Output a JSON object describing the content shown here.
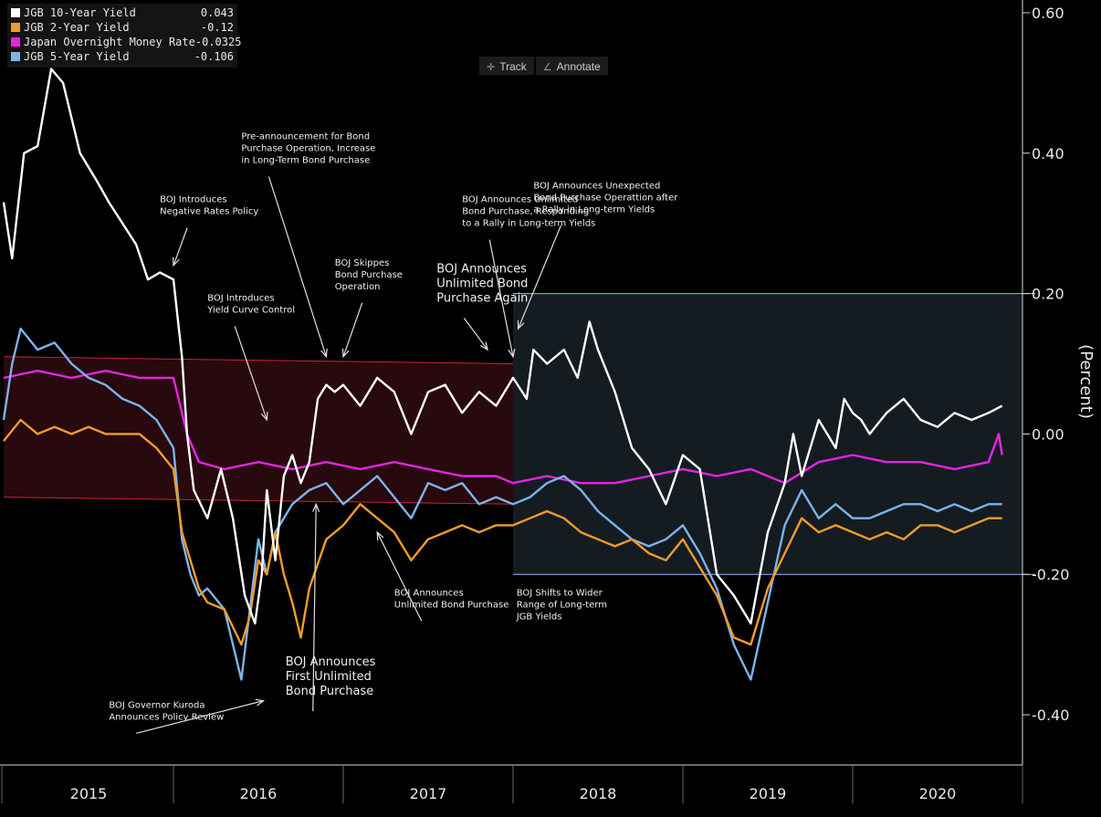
{
  "legend": [
    {
      "name": "JGB 10-Year Yield",
      "value": "0.043",
      "color": "#ffffff"
    },
    {
      "name": "JGB 2-Year Yield",
      "value": "-0.12",
      "color": "#f39c2a"
    },
    {
      "name": "Japan Overnight Money Rate",
      "value": "-0.0325",
      "color": "#e624e6"
    },
    {
      "name": "JGB 5-Year Yield",
      "value": "-0.106",
      "color": "#7db4ec"
    }
  ],
  "toolbar": {
    "track_label": "Track",
    "annotate_label": "Annotate",
    "track_icon": "crosshair-icon",
    "annotate_icon": "pencil-icon"
  },
  "chart_data": {
    "type": "line",
    "title": "",
    "xlabel": "",
    "ylabel": "(Percent)",
    "xlim": [
      2015.0,
      2021.0
    ],
    "ylim": [
      -0.47,
      0.62
    ],
    "y_ticks": [
      0.6,
      0.4,
      0.2,
      0.0,
      -0.2,
      -0.4
    ],
    "y_tick_labels": [
      "0.60",
      "0.40",
      "0.20",
      "0.00",
      "-0.20",
      "-0.40"
    ],
    "year_labels": [
      "2015",
      "2016",
      "2017",
      "2018",
      "2019",
      "2020"
    ],
    "axis_position": "right",
    "grid": false,
    "series": [
      {
        "name": "JGB 10-Year Yield",
        "color": "#ffffff",
        "x": [
          2015.0,
          2015.05,
          2015.12,
          2015.2,
          2015.28,
          2015.35,
          2015.45,
          2015.55,
          2015.62,
          2015.7,
          2015.78,
          2015.85,
          2015.92,
          2016.0,
          2016.05,
          2016.08,
          2016.12,
          2016.2,
          2016.28,
          2016.35,
          2016.42,
          2016.48,
          2016.52,
          2016.55,
          2016.6,
          2016.65,
          2016.7,
          2016.75,
          2016.8,
          2016.85,
          2016.9,
          2016.95,
          2017.0,
          2017.1,
          2017.2,
          2017.3,
          2017.4,
          2017.5,
          2017.6,
          2017.7,
          2017.8,
          2017.9,
          2018.0,
          2018.08,
          2018.12,
          2018.2,
          2018.3,
          2018.38,
          2018.45,
          2018.5,
          2018.6,
          2018.7,
          2018.8,
          2018.9,
          2019.0,
          2019.1,
          2019.2,
          2019.3,
          2019.4,
          2019.5,
          2019.6,
          2019.65,
          2019.7,
          2019.8,
          2019.9,
          2019.95,
          2020.0,
          2020.05,
          2020.1,
          2020.2,
          2020.3,
          2020.4,
          2020.5,
          2020.6,
          2020.7,
          2020.8,
          2020.88
        ],
        "values": [
          0.33,
          0.25,
          0.4,
          0.41,
          0.52,
          0.5,
          0.4,
          0.36,
          0.33,
          0.3,
          0.27,
          0.22,
          0.23,
          0.22,
          0.11,
          0.0,
          -0.08,
          -0.12,
          -0.05,
          -0.12,
          -0.23,
          -0.27,
          -0.2,
          -0.08,
          -0.18,
          -0.06,
          -0.03,
          -0.07,
          -0.04,
          0.05,
          0.07,
          0.06,
          0.07,
          0.04,
          0.08,
          0.06,
          0.0,
          0.06,
          0.07,
          0.03,
          0.06,
          0.04,
          0.08,
          0.05,
          0.12,
          0.1,
          0.12,
          0.08,
          0.16,
          0.12,
          0.06,
          -0.02,
          -0.05,
          -0.1,
          -0.03,
          -0.05,
          -0.2,
          -0.23,
          -0.27,
          -0.14,
          -0.07,
          0.0,
          -0.06,
          0.02,
          -0.02,
          0.05,
          0.03,
          0.02,
          0.0,
          0.03,
          0.05,
          0.02,
          0.01,
          0.03,
          0.02,
          0.03,
          0.04
        ]
      },
      {
        "name": "JGB 2-Year Yield",
        "color": "#f39c2a",
        "x": [
          2015.0,
          2015.1,
          2015.2,
          2015.3,
          2015.4,
          2015.5,
          2015.6,
          2015.7,
          2015.8,
          2015.9,
          2016.0,
          2016.05,
          2016.1,
          2016.15,
          2016.2,
          2016.3,
          2016.4,
          2016.45,
          2016.5,
          2016.55,
          2016.6,
          2016.65,
          2016.7,
          2016.75,
          2016.8,
          2016.9,
          2017.0,
          2017.1,
          2017.2,
          2017.3,
          2017.4,
          2017.5,
          2017.6,
          2017.7,
          2017.8,
          2017.9,
          2018.0,
          2018.1,
          2018.2,
          2018.3,
          2018.4,
          2018.5,
          2018.6,
          2018.7,
          2018.8,
          2018.9,
          2019.0,
          2019.1,
          2019.2,
          2019.3,
          2019.4,
          2019.5,
          2019.6,
          2019.7,
          2019.8,
          2019.9,
          2020.0,
          2020.1,
          2020.2,
          2020.3,
          2020.4,
          2020.5,
          2020.6,
          2020.7,
          2020.8,
          2020.88
        ],
        "values": [
          -0.01,
          0.02,
          0.0,
          0.01,
          0.0,
          0.01,
          0.0,
          0.0,
          0.0,
          -0.02,
          -0.05,
          -0.14,
          -0.18,
          -0.22,
          -0.24,
          -0.25,
          -0.3,
          -0.26,
          -0.18,
          -0.2,
          -0.14,
          -0.2,
          -0.24,
          -0.29,
          -0.22,
          -0.15,
          -0.13,
          -0.1,
          -0.12,
          -0.14,
          -0.18,
          -0.15,
          -0.14,
          -0.13,
          -0.14,
          -0.13,
          -0.13,
          -0.12,
          -0.11,
          -0.12,
          -0.14,
          -0.15,
          -0.16,
          -0.15,
          -0.17,
          -0.18,
          -0.15,
          -0.19,
          -0.23,
          -0.29,
          -0.3,
          -0.22,
          -0.17,
          -0.12,
          -0.14,
          -0.13,
          -0.14,
          -0.15,
          -0.14,
          -0.15,
          -0.13,
          -0.13,
          -0.14,
          -0.13,
          -0.12,
          -0.12
        ]
      },
      {
        "name": "Japan Overnight Money Rate",
        "color": "#e624e6",
        "x": [
          2015.0,
          2015.2,
          2015.4,
          2015.6,
          2015.8,
          2016.0,
          2016.08,
          2016.15,
          2016.3,
          2016.5,
          2016.7,
          2016.9,
          2017.1,
          2017.3,
          2017.5,
          2017.7,
          2017.9,
          2018.0,
          2018.2,
          2018.4,
          2018.6,
          2018.8,
          2019.0,
          2019.2,
          2019.4,
          2019.6,
          2019.8,
          2020.0,
          2020.2,
          2020.4,
          2020.6,
          2020.8,
          2020.86,
          2020.88
        ],
        "values": [
          0.08,
          0.09,
          0.08,
          0.09,
          0.08,
          0.08,
          0.0,
          -0.04,
          -0.05,
          -0.04,
          -0.05,
          -0.04,
          -0.05,
          -0.04,
          -0.05,
          -0.06,
          -0.06,
          -0.07,
          -0.06,
          -0.07,
          -0.07,
          -0.06,
          -0.05,
          -0.06,
          -0.05,
          -0.07,
          -0.04,
          -0.03,
          -0.04,
          -0.04,
          -0.05,
          -0.04,
          0.0,
          -0.03
        ]
      },
      {
        "name": "JGB 5-Year Yield",
        "color": "#7db4ec",
        "x": [
          2015.0,
          2015.05,
          2015.1,
          2015.2,
          2015.3,
          2015.4,
          2015.5,
          2015.6,
          2015.7,
          2015.8,
          2015.9,
          2016.0,
          2016.05,
          2016.1,
          2016.15,
          2016.2,
          2016.3,
          2016.4,
          2016.45,
          2016.5,
          2016.55,
          2016.6,
          2016.7,
          2016.8,
          2016.9,
          2017.0,
          2017.1,
          2017.2,
          2017.3,
          2017.4,
          2017.5,
          2017.6,
          2017.7,
          2017.8,
          2017.9,
          2018.0,
          2018.1,
          2018.2,
          2018.3,
          2018.4,
          2018.5,
          2018.6,
          2018.7,
          2018.8,
          2018.9,
          2019.0,
          2019.1,
          2019.2,
          2019.3,
          2019.4,
          2019.5,
          2019.6,
          2019.7,
          2019.8,
          2019.9,
          2020.0,
          2020.1,
          2020.2,
          2020.3,
          2020.4,
          2020.5,
          2020.6,
          2020.7,
          2020.8,
          2020.88
        ],
        "values": [
          0.02,
          0.1,
          0.15,
          0.12,
          0.13,
          0.1,
          0.08,
          0.07,
          0.05,
          0.04,
          0.02,
          -0.02,
          -0.15,
          -0.2,
          -0.23,
          -0.22,
          -0.25,
          -0.35,
          -0.25,
          -0.15,
          -0.2,
          -0.14,
          -0.1,
          -0.08,
          -0.07,
          -0.1,
          -0.08,
          -0.06,
          -0.09,
          -0.12,
          -0.07,
          -0.08,
          -0.07,
          -0.1,
          -0.09,
          -0.1,
          -0.09,
          -0.07,
          -0.06,
          -0.08,
          -0.11,
          -0.13,
          -0.15,
          -0.16,
          -0.15,
          -0.13,
          -0.17,
          -0.22,
          -0.3,
          -0.35,
          -0.24,
          -0.13,
          -0.08,
          -0.12,
          -0.1,
          -0.12,
          -0.12,
          -0.11,
          -0.1,
          -0.1,
          -0.11,
          -0.1,
          -0.11,
          -0.1,
          -0.1
        ]
      }
    ],
    "bands": [
      {
        "name": "pre-2018 range",
        "x0": 2015.0,
        "x1": 2018.0,
        "y0_start": 0.11,
        "y0_end": 0.1,
        "y1_start": -0.09,
        "y1_end": -0.1,
        "fill": "#2b0a0f",
        "stroke": "#d0203a"
      },
      {
        "name": "wider range",
        "x0": 2018.0,
        "x1": 2021.0,
        "y0": 0.2,
        "y1": -0.2,
        "fill": "#141c22",
        "stroke": "#9ab8ff"
      }
    ],
    "annotations": [
      {
        "text": "BOJ Introduces\nNegative Rates Policy",
        "x": 2015.92,
        "y": 0.33,
        "ax": 2016.0,
        "ay": 0.24
      },
      {
        "text": "Pre-announcement for Bond\nPurchase Operation, Increase\nin Long-Term Bond Purchase",
        "x": 2016.4,
        "y": 0.42,
        "ax": 2016.9,
        "ay": 0.11
      },
      {
        "text": "BOJ Skippes\nBond Purchase\nOperation",
        "x": 2016.95,
        "y": 0.24,
        "ax": 2017.0,
        "ay": 0.11
      },
      {
        "text": "BOJ Introduces\nYield Curve Control",
        "x": 2016.2,
        "y": 0.19,
        "ax": 2016.55,
        "ay": 0.02
      },
      {
        "text": "BOJ Announces\nUnlimited Bond\nPurchase Again",
        "x": 2017.55,
        "y": 0.23,
        "ax": 2017.85,
        "ay": 0.12,
        "size": 13
      },
      {
        "text": "BOJ Announces Unlimited\nBond Purchase, Responding\nto a Rally in Long-term Yields",
        "x": 2017.7,
        "y": 0.33,
        "ax": 2018.0,
        "ay": 0.11
      },
      {
        "text": "BOJ Announces Unexpected\nBond Purchase Operattion after\na Rally in Long-term Yields",
        "x": 2018.12,
        "y": 0.35,
        "ax": 2018.03,
        "ay": 0.15
      },
      {
        "text": "BOJ Shifts to Wider\nRange of Long-term\nJGB Yields",
        "x": 2018.02,
        "y": -0.23,
        "ax": null,
        "ay": null
      },
      {
        "text": "BOJ Announces\nUnlimited Bond Purchase",
        "x": 2017.3,
        "y": -0.23,
        "ax": 2017.2,
        "ay": -0.14
      },
      {
        "text": "BOJ Announces\nFirst Unlimited\nBond Purchase",
        "x": 2016.66,
        "y": -0.33,
        "ax": 2016.84,
        "ay": -0.1,
        "size": 13
      },
      {
        "text": "BOJ Governor Kuroda\nAnnounces Policy Review",
        "x": 2015.62,
        "y": -0.39,
        "ax": 2016.53,
        "ay": -0.38
      }
    ]
  }
}
